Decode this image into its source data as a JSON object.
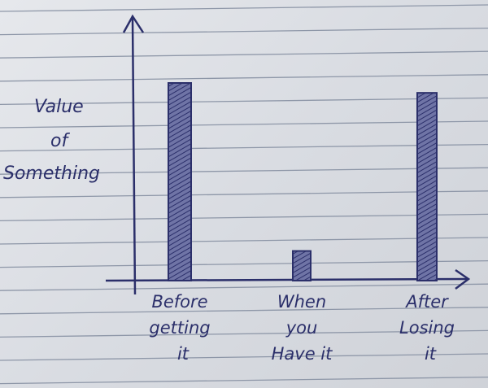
{
  "chart_data": {
    "type": "bar",
    "title": "",
    "xlabel": "",
    "ylabel": "Value of Something",
    "ylabel_lines": [
      "Value",
      "of",
      "Something"
    ],
    "categories": [
      "Before getting it",
      "When you Have it",
      "After Losing it"
    ],
    "category_lines": [
      [
        "Before",
        "getting",
        "it"
      ],
      [
        "When",
        "you",
        "Have it"
      ],
      [
        "After",
        "Losing",
        "it"
      ]
    ],
    "values": [
      10,
      1.5,
      9.5
    ],
    "ylim": [
      0,
      14
    ],
    "grid": false,
    "hand_drawn": true,
    "colors": {
      "ink": "#2b2f6a",
      "paper": "#dfe2e7",
      "rule_lines": "#8e97a8"
    }
  }
}
